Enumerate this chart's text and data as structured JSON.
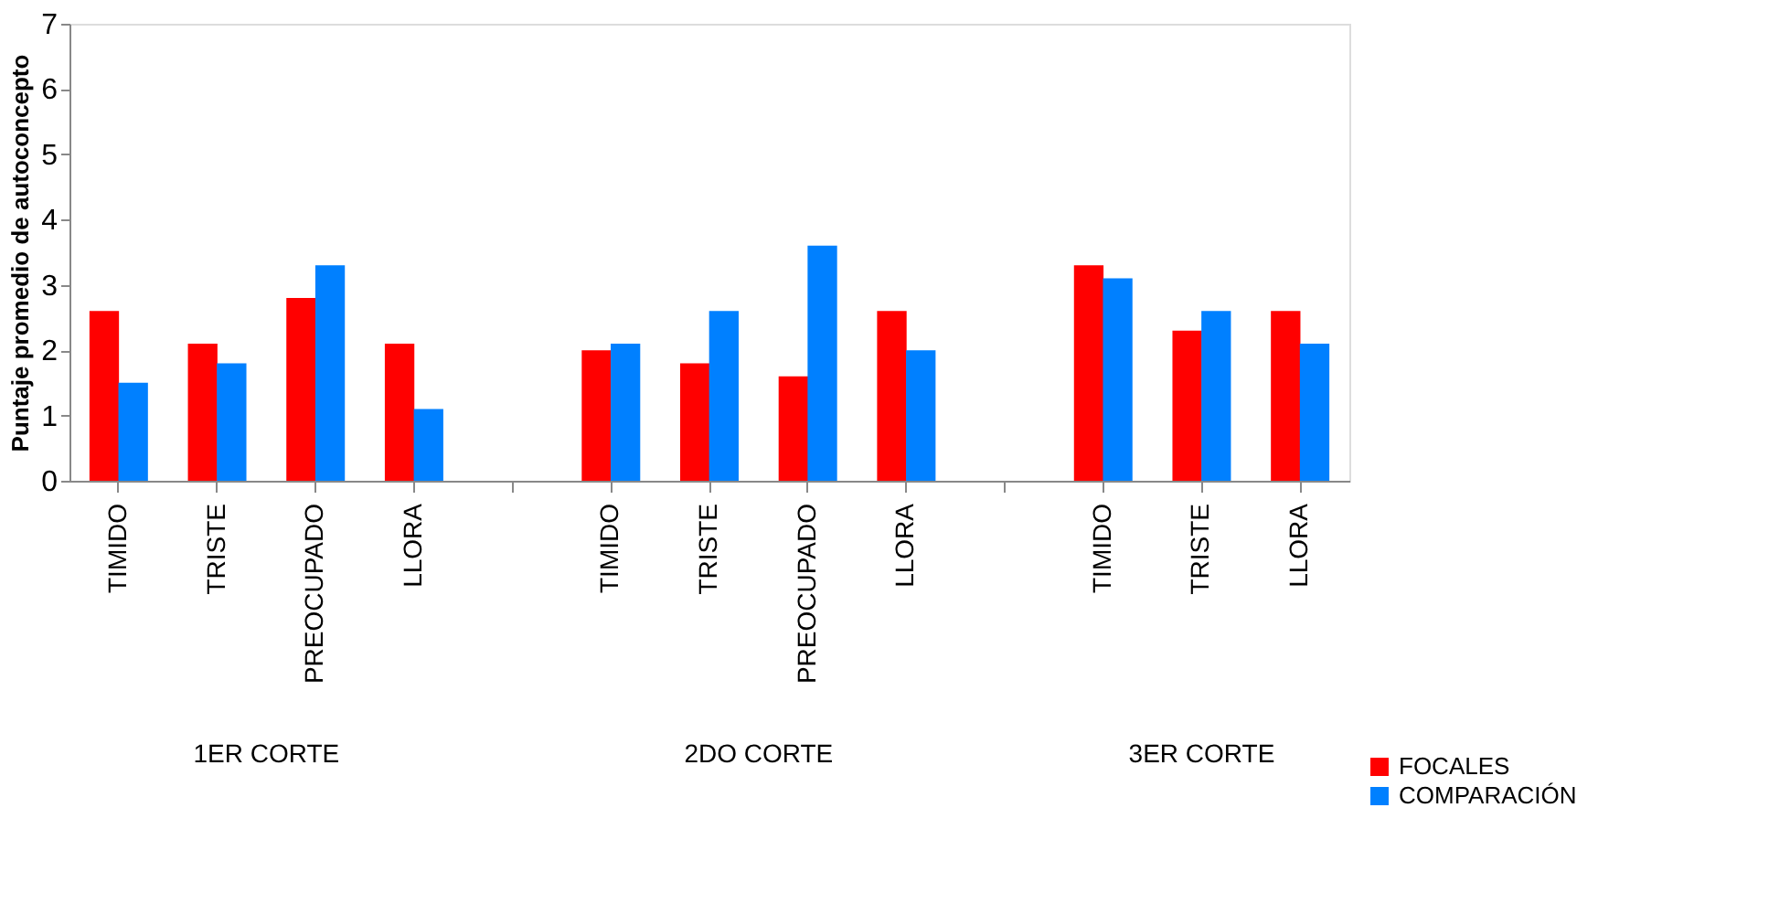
{
  "chart_data": {
    "type": "bar",
    "ylabel": "Puntaje promedio de autoconcepto",
    "categories": [
      "TIMIDO",
      "TRISTE",
      "PREOCUPADO",
      "LLORA",
      null,
      "TIMIDO",
      "TRISTE",
      "PREOCUPADO",
      "LLORA",
      null,
      "TIMIDO",
      "TRISTE",
      "LLORA"
    ],
    "series": [
      {
        "name": "FOCALES",
        "color": "#ff0000",
        "values": [
          2.6,
          2.1,
          2.8,
          2.1,
          null,
          2.0,
          1.8,
          1.6,
          2.6,
          null,
          3.3,
          2.3,
          2.6
        ]
      },
      {
        "name": "COMPARACIÓN",
        "color": "#0080ff",
        "values": [
          1.5,
          1.8,
          3.3,
          1.1,
          null,
          2.1,
          2.6,
          3.6,
          2.0,
          null,
          3.1,
          2.6,
          2.1
        ]
      }
    ],
    "annotations": [
      "1ER CORTE",
      "2DO CORTE",
      "3ER CORTE"
    ],
    "ylim": [
      0,
      7
    ],
    "yticks": [
      0,
      1,
      2,
      3,
      4,
      5,
      6,
      7
    ],
    "grid": false,
    "legend": "bottom right"
  }
}
